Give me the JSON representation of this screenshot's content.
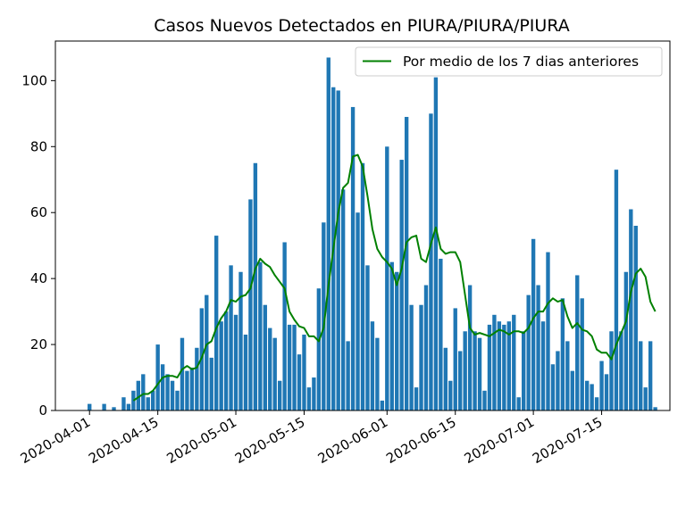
{
  "chart_data": {
    "type": "bar",
    "title": "Casos Nuevos Detectados en PIURA/PIURA/PIURA",
    "xlabel": "",
    "ylabel": "",
    "x_start": "2020-03-25",
    "x_end": "2020-07-29",
    "ylim": [
      0,
      112
    ],
    "yticks": [
      0,
      20,
      40,
      60,
      80,
      100
    ],
    "xticks": [
      "2020-04-01",
      "2020-04-15",
      "2020-05-01",
      "2020-05-15",
      "2020-06-01",
      "2020-06-15",
      "2020-07-01",
      "2020-07-15"
    ],
    "legend": {
      "label": "Por medio de los 7 dias anteriores",
      "position": "upper-right"
    },
    "colors": {
      "bars": "#1f77b4",
      "line": "#008000"
    },
    "bars": [
      {
        "date": "2020-04-01",
        "value": 2
      },
      {
        "date": "2020-04-04",
        "value": 2
      },
      {
        "date": "2020-04-06",
        "value": 1
      },
      {
        "date": "2020-04-08",
        "value": 4
      },
      {
        "date": "2020-04-09",
        "value": 2
      },
      {
        "date": "2020-04-10",
        "value": 6
      },
      {
        "date": "2020-04-11",
        "value": 9
      },
      {
        "date": "2020-04-12",
        "value": 11
      },
      {
        "date": "2020-04-13",
        "value": 4
      },
      {
        "date": "2020-04-14",
        "value": 6
      },
      {
        "date": "2020-04-15",
        "value": 20
      },
      {
        "date": "2020-04-16",
        "value": 14
      },
      {
        "date": "2020-04-17",
        "value": 11
      },
      {
        "date": "2020-04-18",
        "value": 9
      },
      {
        "date": "2020-04-19",
        "value": 6
      },
      {
        "date": "2020-04-20",
        "value": 22
      },
      {
        "date": "2020-04-21",
        "value": 12
      },
      {
        "date": "2020-04-22",
        "value": 13
      },
      {
        "date": "2020-04-23",
        "value": 19
      },
      {
        "date": "2020-04-24",
        "value": 31
      },
      {
        "date": "2020-04-25",
        "value": 35
      },
      {
        "date": "2020-04-26",
        "value": 16
      },
      {
        "date": "2020-04-27",
        "value": 53
      },
      {
        "date": "2020-04-28",
        "value": 27
      },
      {
        "date": "2020-04-29",
        "value": 30
      },
      {
        "date": "2020-04-30",
        "value": 44
      },
      {
        "date": "2020-05-01",
        "value": 29
      },
      {
        "date": "2020-05-02",
        "value": 42
      },
      {
        "date": "2020-05-03",
        "value": 23
      },
      {
        "date": "2020-05-04",
        "value": 64
      },
      {
        "date": "2020-05-05",
        "value": 75
      },
      {
        "date": "2020-05-06",
        "value": 45
      },
      {
        "date": "2020-05-07",
        "value": 32
      },
      {
        "date": "2020-05-08",
        "value": 25
      },
      {
        "date": "2020-05-09",
        "value": 22
      },
      {
        "date": "2020-05-10",
        "value": 9
      },
      {
        "date": "2020-05-11",
        "value": 51
      },
      {
        "date": "2020-05-12",
        "value": 26
      },
      {
        "date": "2020-05-13",
        "value": 26
      },
      {
        "date": "2020-05-14",
        "value": 17
      },
      {
        "date": "2020-05-15",
        "value": 23
      },
      {
        "date": "2020-05-16",
        "value": 7
      },
      {
        "date": "2020-05-17",
        "value": 10
      },
      {
        "date": "2020-05-18",
        "value": 37
      },
      {
        "date": "2020-05-19",
        "value": 57
      },
      {
        "date": "2020-05-20",
        "value": 107
      },
      {
        "date": "2020-05-21",
        "value": 98
      },
      {
        "date": "2020-05-22",
        "value": 97
      },
      {
        "date": "2020-05-23",
        "value": 67
      },
      {
        "date": "2020-05-24",
        "value": 21
      },
      {
        "date": "2020-05-25",
        "value": 92
      },
      {
        "date": "2020-05-26",
        "value": 60
      },
      {
        "date": "2020-05-27",
        "value": 75
      },
      {
        "date": "2020-05-28",
        "value": 44
      },
      {
        "date": "2020-05-29",
        "value": 27
      },
      {
        "date": "2020-05-30",
        "value": 22
      },
      {
        "date": "2020-05-31",
        "value": 3
      },
      {
        "date": "2020-06-01",
        "value": 80
      },
      {
        "date": "2020-06-02",
        "value": 45
      },
      {
        "date": "2020-06-03",
        "value": 42
      },
      {
        "date": "2020-06-04",
        "value": 76
      },
      {
        "date": "2020-06-05",
        "value": 89
      },
      {
        "date": "2020-06-06",
        "value": 32
      },
      {
        "date": "2020-06-07",
        "value": 7
      },
      {
        "date": "2020-06-08",
        "value": 32
      },
      {
        "date": "2020-06-09",
        "value": 38
      },
      {
        "date": "2020-06-10",
        "value": 90
      },
      {
        "date": "2020-06-11",
        "value": 101
      },
      {
        "date": "2020-06-12",
        "value": 46
      },
      {
        "date": "2020-06-13",
        "value": 19
      },
      {
        "date": "2020-06-14",
        "value": 9
      },
      {
        "date": "2020-06-15",
        "value": 31
      },
      {
        "date": "2020-06-16",
        "value": 18
      },
      {
        "date": "2020-06-17",
        "value": 24
      },
      {
        "date": "2020-06-18",
        "value": 38
      },
      {
        "date": "2020-06-19",
        "value": 24
      },
      {
        "date": "2020-06-20",
        "value": 22
      },
      {
        "date": "2020-06-21",
        "value": 6
      },
      {
        "date": "2020-06-22",
        "value": 26
      },
      {
        "date": "2020-06-23",
        "value": 29
      },
      {
        "date": "2020-06-24",
        "value": 27
      },
      {
        "date": "2020-06-25",
        "value": 26
      },
      {
        "date": "2020-06-26",
        "value": 27
      },
      {
        "date": "2020-06-27",
        "value": 29
      },
      {
        "date": "2020-06-28",
        "value": 4
      },
      {
        "date": "2020-06-29",
        "value": 24
      },
      {
        "date": "2020-06-30",
        "value": 35
      },
      {
        "date": "2020-07-01",
        "value": 52
      },
      {
        "date": "2020-07-02",
        "value": 38
      },
      {
        "date": "2020-07-03",
        "value": 27
      },
      {
        "date": "2020-07-04",
        "value": 48
      },
      {
        "date": "2020-07-05",
        "value": 14
      },
      {
        "date": "2020-07-06",
        "value": 18
      },
      {
        "date": "2020-07-07",
        "value": 34
      },
      {
        "date": "2020-07-08",
        "value": 21
      },
      {
        "date": "2020-07-09",
        "value": 12
      },
      {
        "date": "2020-07-10",
        "value": 41
      },
      {
        "date": "2020-07-11",
        "value": 34
      },
      {
        "date": "2020-07-12",
        "value": 9
      },
      {
        "date": "2020-07-13",
        "value": 8
      },
      {
        "date": "2020-07-14",
        "value": 4
      },
      {
        "date": "2020-07-15",
        "value": 15
      },
      {
        "date": "2020-07-16",
        "value": 11
      },
      {
        "date": "2020-07-17",
        "value": 24
      },
      {
        "date": "2020-07-18",
        "value": 73
      },
      {
        "date": "2020-07-19",
        "value": 24
      },
      {
        "date": "2020-07-20",
        "value": 42
      },
      {
        "date": "2020-07-21",
        "value": 61
      },
      {
        "date": "2020-07-22",
        "value": 56
      },
      {
        "date": "2020-07-23",
        "value": 21
      },
      {
        "date": "2020-07-24",
        "value": 7
      },
      {
        "date": "2020-07-25",
        "value": 21
      },
      {
        "date": "2020-07-26",
        "value": 1
      }
    ],
    "moving_average": [
      {
        "date": "2020-04-10",
        "value": 3
      },
      {
        "date": "2020-04-11",
        "value": 4
      },
      {
        "date": "2020-04-12",
        "value": 5
      },
      {
        "date": "2020-04-13",
        "value": 5
      },
      {
        "date": "2020-04-14",
        "value": 6
      },
      {
        "date": "2020-04-15",
        "value": 8
      },
      {
        "date": "2020-04-16",
        "value": 10
      },
      {
        "date": "2020-04-17",
        "value": 10.5
      },
      {
        "date": "2020-04-18",
        "value": 10.5
      },
      {
        "date": "2020-04-19",
        "value": 10
      },
      {
        "date": "2020-04-20",
        "value": 12.5
      },
      {
        "date": "2020-04-21",
        "value": 13.5
      },
      {
        "date": "2020-04-22",
        "value": 12.5
      },
      {
        "date": "2020-04-23",
        "value": 13
      },
      {
        "date": "2020-04-24",
        "value": 16
      },
      {
        "date": "2020-04-25",
        "value": 20
      },
      {
        "date": "2020-04-26",
        "value": 21
      },
      {
        "date": "2020-04-27",
        "value": 25
      },
      {
        "date": "2020-04-28",
        "value": 28
      },
      {
        "date": "2020-04-29",
        "value": 30
      },
      {
        "date": "2020-04-30",
        "value": 33.5
      },
      {
        "date": "2020-05-01",
        "value": 33
      },
      {
        "date": "2020-05-02",
        "value": 34.5
      },
      {
        "date": "2020-05-03",
        "value": 35
      },
      {
        "date": "2020-05-04",
        "value": 37
      },
      {
        "date": "2020-05-05",
        "value": 43
      },
      {
        "date": "2020-05-06",
        "value": 46
      },
      {
        "date": "2020-05-07",
        "value": 44.5
      },
      {
        "date": "2020-05-08",
        "value": 43.5
      },
      {
        "date": "2020-05-09",
        "value": 41
      },
      {
        "date": "2020-05-10",
        "value": 39
      },
      {
        "date": "2020-05-11",
        "value": 37
      },
      {
        "date": "2020-05-12",
        "value": 30
      },
      {
        "date": "2020-05-13",
        "value": 27.5
      },
      {
        "date": "2020-05-14",
        "value": 25.5
      },
      {
        "date": "2020-05-15",
        "value": 25
      },
      {
        "date": "2020-05-16",
        "value": 22.5
      },
      {
        "date": "2020-05-17",
        "value": 22.5
      },
      {
        "date": "2020-05-18",
        "value": 21
      },
      {
        "date": "2020-05-19",
        "value": 25
      },
      {
        "date": "2020-05-20",
        "value": 38
      },
      {
        "date": "2020-05-21",
        "value": 49
      },
      {
        "date": "2020-05-22",
        "value": 60
      },
      {
        "date": "2020-05-23",
        "value": 67.5
      },
      {
        "date": "2020-05-24",
        "value": 69
      },
      {
        "date": "2020-05-25",
        "value": 77
      },
      {
        "date": "2020-05-26",
        "value": 77.5
      },
      {
        "date": "2020-05-27",
        "value": 74
      },
      {
        "date": "2020-05-28",
        "value": 65
      },
      {
        "date": "2020-05-29",
        "value": 55
      },
      {
        "date": "2020-05-30",
        "value": 49
      },
      {
        "date": "2020-05-31",
        "value": 46.5
      },
      {
        "date": "2020-06-01",
        "value": 45
      },
      {
        "date": "2020-06-02",
        "value": 43
      },
      {
        "date": "2020-06-03",
        "value": 38
      },
      {
        "date": "2020-06-04",
        "value": 43
      },
      {
        "date": "2020-06-05",
        "value": 51
      },
      {
        "date": "2020-06-06",
        "value": 52.5
      },
      {
        "date": "2020-06-07",
        "value": 53
      },
      {
        "date": "2020-06-08",
        "value": 46
      },
      {
        "date": "2020-06-09",
        "value": 45
      },
      {
        "date": "2020-06-10",
        "value": 50.5
      },
      {
        "date": "2020-06-11",
        "value": 55.5
      },
      {
        "date": "2020-06-12",
        "value": 49
      },
      {
        "date": "2020-06-13",
        "value": 47.5
      },
      {
        "date": "2020-06-14",
        "value": 48
      },
      {
        "date": "2020-06-15",
        "value": 48
      },
      {
        "date": "2020-06-16",
        "value": 45
      },
      {
        "date": "2020-06-17",
        "value": 35
      },
      {
        "date": "2020-06-18",
        "value": 25
      },
      {
        "date": "2020-06-19",
        "value": 23
      },
      {
        "date": "2020-06-20",
        "value": 23.5
      },
      {
        "date": "2020-06-21",
        "value": 23
      },
      {
        "date": "2020-06-22",
        "value": 22.5
      },
      {
        "date": "2020-06-23",
        "value": 23.5
      },
      {
        "date": "2020-06-24",
        "value": 24.5
      },
      {
        "date": "2020-06-25",
        "value": 24
      },
      {
        "date": "2020-06-26",
        "value": 23
      },
      {
        "date": "2020-06-27",
        "value": 24
      },
      {
        "date": "2020-06-28",
        "value": 24
      },
      {
        "date": "2020-06-29",
        "value": 23.5
      },
      {
        "date": "2020-06-30",
        "value": 25
      },
      {
        "date": "2020-07-01",
        "value": 28
      },
      {
        "date": "2020-07-02",
        "value": 30
      },
      {
        "date": "2020-07-03",
        "value": 30
      },
      {
        "date": "2020-07-04",
        "value": 32.5
      },
      {
        "date": "2020-07-05",
        "value": 34
      },
      {
        "date": "2020-07-06",
        "value": 33
      },
      {
        "date": "2020-07-07",
        "value": 33.5
      },
      {
        "date": "2020-07-08",
        "value": 28.5
      },
      {
        "date": "2020-07-09",
        "value": 25
      },
      {
        "date": "2020-07-10",
        "value": 26.5
      },
      {
        "date": "2020-07-11",
        "value": 24.5
      },
      {
        "date": "2020-07-12",
        "value": 24
      },
      {
        "date": "2020-07-13",
        "value": 22.5
      },
      {
        "date": "2020-07-14",
        "value": 18.5
      },
      {
        "date": "2020-07-15",
        "value": 17.5
      },
      {
        "date": "2020-07-16",
        "value": 17.5
      },
      {
        "date": "2020-07-17",
        "value": 15.5
      },
      {
        "date": "2020-07-18",
        "value": 20
      },
      {
        "date": "2020-07-19",
        "value": 23.5
      },
      {
        "date": "2020-07-20",
        "value": 27
      },
      {
        "date": "2020-07-21",
        "value": 36
      },
      {
        "date": "2020-07-22",
        "value": 41.5
      },
      {
        "date": "2020-07-23",
        "value": 43
      },
      {
        "date": "2020-07-24",
        "value": 40.5
      },
      {
        "date": "2020-07-25",
        "value": 33
      },
      {
        "date": "2020-07-26",
        "value": 30
      }
    ]
  }
}
